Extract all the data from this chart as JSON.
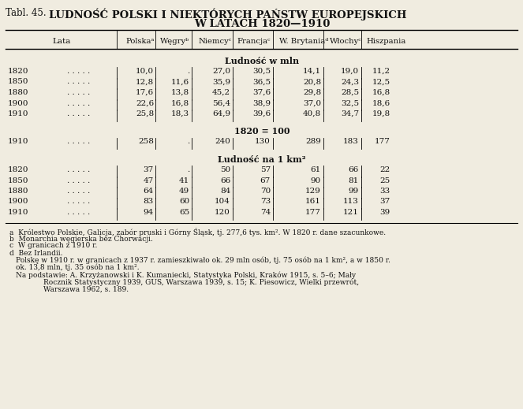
{
  "title_line1": "LUDNOŚĆ POLSKI I NIEKTÓRYCH PAŃSTW EUROPEJSKICH",
  "title_line2": "W LATACH 1820—1910",
  "title_prefix": "Tabl. 45.",
  "headers": [
    "Lata",
    "Polskaᵃ",
    "Węgryᵇ",
    "Niemcyᶜ",
    "Francjaᶜ",
    "W. Brytaniaᵈ",
    "Włochyᶜ",
    "Hiszpania"
  ],
  "section1_header": "Ludność w mln",
  "section1_rows": [
    [
      "1820",
      ". . . . .",
      "10,0",
      ".",
      "27,0",
      "30,5",
      "14,1",
      "19,0",
      "11,2"
    ],
    [
      "1850",
      ". . . . .",
      "12,8",
      "11,6",
      "35,9",
      "36,5",
      "20,8",
      "24,3",
      "12,5"
    ],
    [
      "1880",
      ". . . . .",
      "17,6",
      "13,8",
      "45,2",
      "37,6",
      "29,8",
      "28,5",
      "16,8"
    ],
    [
      "1900",
      ". . . . .",
      "22,6",
      "16,8",
      "56,4",
      "38,9",
      "37,0",
      "32,5",
      "18,6"
    ],
    [
      "1910",
      ". . . . .",
      "25,8",
      "18,3",
      "64,9",
      "39,6",
      "40,8",
      "34,7",
      "19,8"
    ]
  ],
  "section2_header": "1820 = 100",
  "section2_rows": [
    [
      "1910",
      ". . . . .",
      "258",
      ".",
      "240",
      "130",
      "289",
      "183",
      "177"
    ]
  ],
  "section3_header": "Ludność na 1 km²",
  "section3_rows": [
    [
      "1820",
      ". . . . .",
      "37",
      ".",
      "50",
      "57",
      "61",
      "66",
      "22"
    ],
    [
      "1850",
      ". . . . .",
      "47",
      "41",
      "66",
      "67",
      "90",
      "81",
      "25"
    ],
    [
      "1880",
      ". . . . .",
      "64",
      "49",
      "84",
      "70",
      "129",
      "99",
      "33"
    ],
    [
      "1900",
      ". . . . .",
      "83",
      "60",
      "104",
      "73",
      "161",
      "113",
      "37"
    ],
    [
      "1910",
      ". . . . .",
      "94",
      "65",
      "120",
      "74",
      "177",
      "121",
      "39"
    ]
  ],
  "footnote_a": "a  Królestwo Polskie, Galicja, zabór pruski i Górny Śląsk, tj. 277,6 tys. km². W 1820 r. dane szacunkowe.",
  "footnote_b": "b  Monarchia węgierska bez Chorwacji.",
  "footnote_c": "c  W granicach z 1910 r.",
  "footnote_d": "d  Bez Irlandii.",
  "footnote_e1": "Polskę w 1910 r. w granicach z 1937 r. zamieszkiwało ok. 29 mln osób, tj. 75 osób na 1 km², a w 1850 r.",
  "footnote_e2": "ok. 13,8 mln, tj. 35 osób na 1 km².",
  "footnote_f1": "Na podstawie: A. Krzyżanowski i K. Kumaniecki, Statystyka Polski, Kraków 1915, s. 5–6; Mały",
  "footnote_f2": "Rocznik Statystyczny 1939, GUS, Warszawa 1939, s. 15; K. Piesowicz, Wielki przewrót,",
  "footnote_f3": "Warszawa 1962, s. 189.",
  "bg_color": "#f0ece0",
  "text_color": "#111111"
}
